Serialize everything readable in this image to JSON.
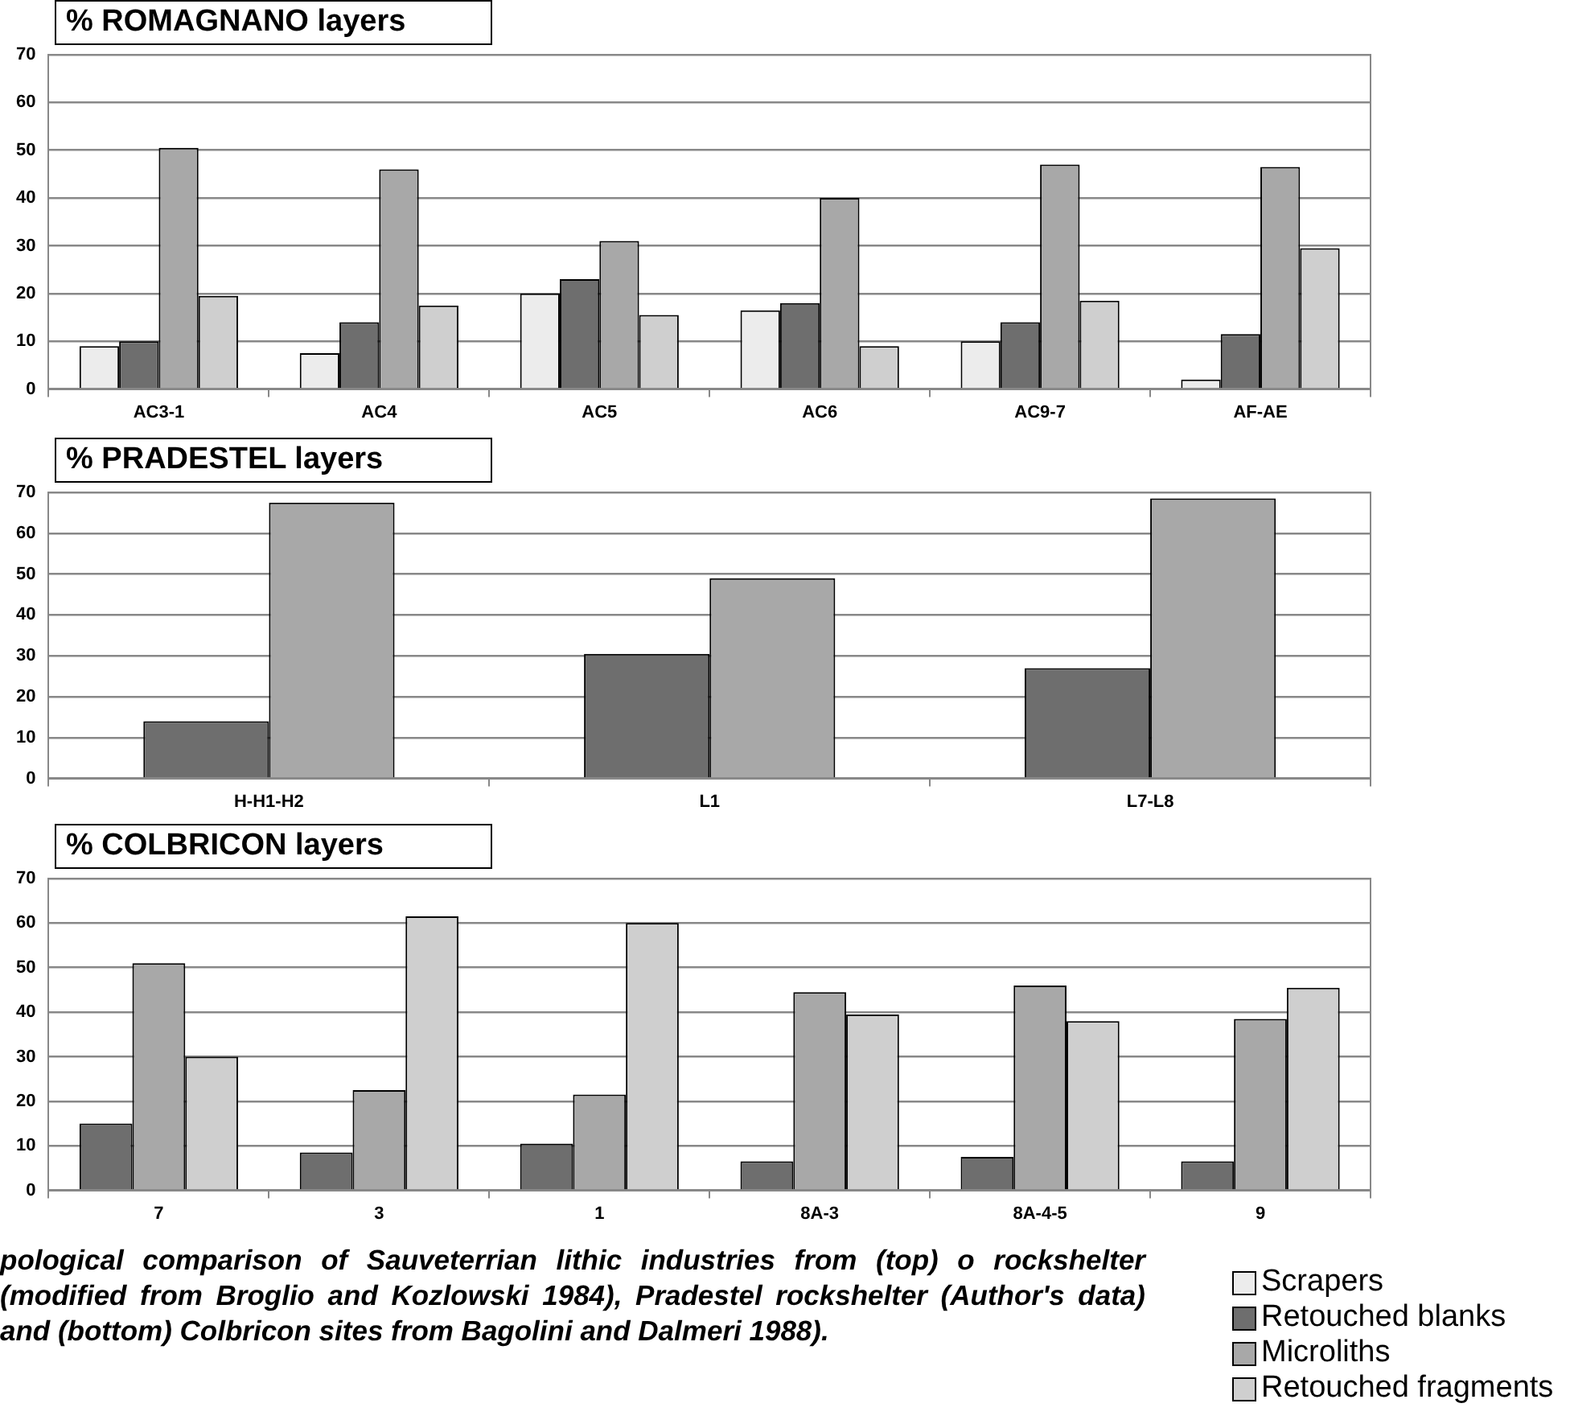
{
  "chart_data": [
    {
      "type": "bar",
      "title": "% ROMAGNANO layers",
      "categories": [
        "AC3-1",
        "AC4",
        "AC5",
        "AC6",
        "AC9-7",
        "AF-AE"
      ],
      "series": [
        {
          "name": "Scrapers",
          "color": "#ececec",
          "values": [
            9,
            7.5,
            20,
            16.5,
            10,
            2
          ]
        },
        {
          "name": "Retouched blanks",
          "color": "#6e6e6e",
          "values": [
            10,
            14,
            23,
            18,
            14,
            11.5
          ]
        },
        {
          "name": "Microliths",
          "color": "#a8a8a8",
          "values": [
            50.5,
            46,
            31,
            40,
            47,
            46.5
          ]
        },
        {
          "name": "Retouched fragments",
          "color": "#cfcfcf",
          "values": [
            19.5,
            17.5,
            15.5,
            9,
            18.5,
            29.5
          ]
        }
      ],
      "ylim": [
        0,
        70
      ],
      "yticks": [
        0,
        10,
        20,
        30,
        40,
        50,
        60,
        70
      ],
      "grid": "y",
      "legend": "bottom right"
    },
    {
      "type": "bar",
      "title": "% PRADESTEL layers",
      "categories": [
        "H-H1-H2",
        "L1",
        "L7-L8"
      ],
      "series": [
        {
          "color": "#6e6e6e",
          "values": [
            14,
            30.5,
            27
          ]
        },
        {
          "color": "#a8a8a8",
          "values": [
            67.5,
            49,
            68.5
          ]
        }
      ],
      "ylim": [
        0,
        70
      ],
      "yticks": [
        0,
        10,
        20,
        30,
        40,
        50,
        60,
        70
      ],
      "grid": "y"
    },
    {
      "type": "bar",
      "title": "% COLBRICON layers",
      "categories": [
        "7",
        "3",
        "1",
        "8A-3",
        "8A-4-5",
        "9"
      ],
      "series": [
        {
          "color": "#6e6e6e",
          "values": [
            15,
            8.5,
            10.5,
            6.5,
            7.5,
            6.5
          ]
        },
        {
          "color": "#a8a8a8",
          "values": [
            51,
            22.5,
            21.5,
            44.5,
            46,
            38.5
          ]
        },
        {
          "color": "#cfcfcf",
          "values": [
            30,
            61.5,
            60,
            39.5,
            38,
            45.5
          ]
        }
      ],
      "ylim": [
        0,
        70
      ],
      "yticks": [
        0,
        10,
        20,
        30,
        40,
        50,
        60,
        70
      ],
      "grid": "y",
      "annotations": [
        "pological comparison of Sauveterrian lithic industries from (top) o rockshelter (modified from Broglio and Kozlowski 1984), Pradestel rockshelter (Author's data) and (bottom) Colbricon sites from Bagolini and Dalmeri 1988)."
      ]
    }
  ]
}
